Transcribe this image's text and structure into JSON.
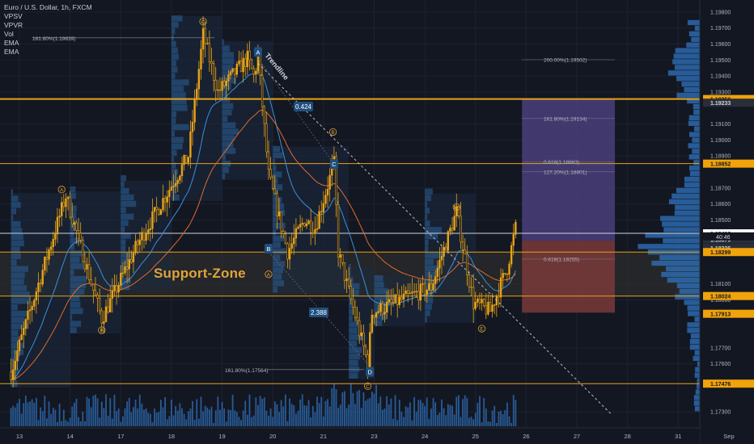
{
  "header": {
    "symbol_line": "Euro / U.S. Dollar, 1h, FXCM",
    "indicators": [
      "VPSV",
      "VPVR",
      "Vol",
      "EMA",
      "EMA"
    ]
  },
  "annotations": {
    "support_zone": "Support-Zone",
    "trendline": "Trendline",
    "ratio_top": "0.424",
    "ratio_bottom": "2.388",
    "fib_top_left": "161.80%(1.19639)",
    "fib_bottom_left": "161.80%(1.17564)",
    "target_200": "200.00%(1.19502)",
    "target_161": "161.80%(1.19134)",
    "target_0618_upper": "0.618(1.18863)",
    "target_127": "127.20%(1.18801)",
    "target_0618_lower": "0.618(1.18255)",
    "time_left": "40:46"
  },
  "wave_labels": [
    {
      "text": "C",
      "style": "circle",
      "x": "Aug 18 15:00",
      "price": 1.1974
    },
    {
      "text": "A",
      "style": "box",
      "x": "Aug 19 17:00",
      "price": 1.1955
    },
    {
      "text": "A",
      "style": "circle",
      "x": "Aug 13 20:00",
      "price": 1.1869
    },
    {
      "text": "B",
      "style": "circle",
      "x": "Aug 14 15:00",
      "price": 1.1781
    },
    {
      "text": "B",
      "style": "box",
      "x": "Aug 19 22:00",
      "price": 1.1832
    },
    {
      "text": "A",
      "style": "circle",
      "x": "Aug 19 22:00",
      "price": 1.1816
    },
    {
      "text": "B",
      "style": "circle",
      "x": "Aug 21 09:00",
      "price": 1.1905
    },
    {
      "text": "C",
      "style": "box",
      "x": "Aug 21 10:00",
      "price": 1.1885
    },
    {
      "text": "D",
      "style": "circle",
      "x": "Aug 24 15:00",
      "price": 1.1858
    },
    {
      "text": "D",
      "style": "box",
      "x": "Aug 22 20:00",
      "price": 1.1755
    },
    {
      "text": "C",
      "style": "circle",
      "x": "Aug 22 18:00",
      "price": 1.1746
    },
    {
      "text": "E",
      "style": "circle",
      "x": "Aug 25 03:00",
      "price": 1.1782
    }
  ],
  "price_axis": {
    "ticks": [
      "1.19800",
      "1.19700",
      "1.19600",
      "1.19500",
      "1.19400",
      "1.19300",
      "1.19100",
      "1.19000",
      "1.18900",
      "1.18700",
      "1.18600",
      "1.18500",
      "1.18100",
      "1.18000",
      "1.17700",
      "1.17600",
      "1.17300"
    ],
    "highlights": [
      {
        "text": "1.19256",
        "bg": "#f0a30a",
        "fg": "#131722"
      },
      {
        "text": "1.19233",
        "bg": "#2a2e39",
        "fg": "#d1d4dc"
      },
      {
        "text": "1.18852",
        "bg": "#f0a30a",
        "fg": "#131722"
      },
      {
        "text": "1.18416",
        "bg": "#ffffff",
        "fg": "#131722"
      },
      {
        "text": "1.18379",
        "bg": "#2a2e39",
        "fg": "#d1d4dc"
      },
      {
        "text": "1.18326",
        "bg": "#2a2e39",
        "fg": "#d1d4dc"
      },
      {
        "text": "1.18299",
        "bg": "#f0a30a",
        "fg": "#131722"
      },
      {
        "text": "1.18024",
        "bg": "#f0a30a",
        "fg": "#131722"
      },
      {
        "text": "1.17913",
        "bg": "#f0a30a",
        "fg": "#131722"
      },
      {
        "text": "1.17476",
        "bg": "#f0a30a",
        "fg": "#131722"
      }
    ]
  },
  "time_axis": {
    "labels": [
      "13",
      "14",
      "17",
      "18",
      "19",
      "20",
      "21",
      "23",
      "24",
      "25",
      "26",
      "27",
      "28",
      "31",
      "Sep"
    ]
  },
  "colors": {
    "background": "#131722",
    "candle": "#e8a317",
    "ema_fast": "#3d8fd8",
    "ema_slow": "#e06a2c",
    "horizontal_levels": "#e8a317",
    "volume": "#2e6db4",
    "target_box_upper": "#4a3f7a",
    "target_box_lower": "#7a3a3a",
    "support_zone_fill": "#3a3a34"
  },
  "chart_data": {
    "type": "candlestick",
    "symbol": "EURUSD",
    "interval": "1h",
    "ylim": [
      1.1725,
      1.1985
    ],
    "xlim": [
      "Aug 12 20:00",
      "Sep 1 20:00"
    ],
    "time_anchors": [
      {
        "label": "Aug 13 00:00",
        "t": 4
      },
      {
        "label": "Aug 14 00:00",
        "t": 28
      },
      {
        "label": "Aug 17 00:00",
        "t": 52
      },
      {
        "label": "Aug 18 00:00",
        "t": 76
      },
      {
        "label": "Aug 19 00:00",
        "t": 100
      },
      {
        "label": "Aug 20 00:00",
        "t": 124
      },
      {
        "label": "Aug 21 00:00",
        "t": 148
      },
      {
        "label": "Aug 23 00:00",
        "t": 172
      },
      {
        "label": "Aug 24 00:00",
        "t": 196
      },
      {
        "label": "Aug 25 00:00",
        "t": 220
      },
      {
        "label": "Aug 26 00:00",
        "t": 244
      },
      {
        "label": "Aug 27 00:00",
        "t": 268
      },
      {
        "label": "Aug 28 00:00",
        "t": 292
      },
      {
        "label": "Aug 31 00:00",
        "t": 316
      },
      {
        "label": "Sep 1 00:00",
        "t": 340
      }
    ],
    "swing_points": [
      {
        "time": "Aug 12 20:00",
        "price": 1.1755
      },
      {
        "time": "Aug 13 22:00",
        "price": 1.1865
      },
      {
        "time": "Aug 14 15:00",
        "price": 1.1788
      },
      {
        "time": "Aug 17 08:00",
        "price": 1.1835
      },
      {
        "time": "Aug 18 08:00",
        "price": 1.189
      },
      {
        "time": "Aug 18 15:00",
        "price": 1.1966
      },
      {
        "time": "Aug 18 22:00",
        "price": 1.193
      },
      {
        "time": "Aug 19 12:00",
        "price": 1.1951
      },
      {
        "time": "Aug 19 15:00",
        "price": 1.194
      },
      {
        "time": "Aug 19 17:00",
        "price": 1.1951
      },
      {
        "time": "Aug 19 22:00",
        "price": 1.1878
      },
      {
        "time": "Aug 20 07:00",
        "price": 1.183
      },
      {
        "time": "Aug 20 15:00",
        "price": 1.185
      },
      {
        "time": "Aug 20 20:00",
        "price": 1.1845
      },
      {
        "time": "Aug 21 10:00",
        "price": 1.1885
      },
      {
        "time": "Aug 21 14:00",
        "price": 1.183
      },
      {
        "time": "Aug 22 18:00",
        "price": 1.176
      },
      {
        "time": "Aug 22 22:00",
        "price": 1.1792
      },
      {
        "time": "Aug 24 03:00",
        "price": 1.1808
      },
      {
        "time": "Aug 24 15:00",
        "price": 1.1855
      },
      {
        "time": "Aug 24 23:00",
        "price": 1.1798
      },
      {
        "time": "Aug 25 07:00",
        "price": 1.1793
      },
      {
        "time": "Aug 25 15:00",
        "price": 1.182
      },
      {
        "time": "Aug 25 19:00",
        "price": 1.1845
      }
    ],
    "levels": [
      {
        "price": 1.19256,
        "color": "#e8a317",
        "width": 2
      },
      {
        "price": 1.18852,
        "color": "#e8a317",
        "width": 1
      },
      {
        "price": 1.18416,
        "color": "#d1d4dc",
        "width": 1
      },
      {
        "price": 1.18299,
        "color": "#e8a317",
        "width": 1
      },
      {
        "price": 1.18024,
        "color": "#e8a317",
        "width": 1
      },
      {
        "price": 1.17476,
        "color": "#e8a317",
        "width": 1
      }
    ],
    "support_zone": [
      1.18024,
      1.18299
    ],
    "trendline": [
      {
        "time": "Aug 19 17:00",
        "price": 1.1948
      },
      {
        "time": "Aug 28 08:00",
        "price": 1.1728
      }
    ],
    "measure_lines": [
      {
        "from": {
          "time": "Aug 19 17:00",
          "price": 1.1951
        },
        "to": {
          "time": "Aug 21 10:00",
          "price": 1.1885
        }
      },
      {
        "from": {
          "time": "Aug 19 22:00",
          "price": 1.183
        },
        "to": {
          "time": "Aug 22 18:00",
          "price": 1.176
        }
      }
    ],
    "target_boxes": [
      {
        "t_start": "Aug 25 22:00",
        "t_end": "Aug 27 18:00",
        "top": 1.19256,
        "bottom": 1.1837,
        "color": "#4a3f7a"
      },
      {
        "t_start": "Aug 25 22:00",
        "t_end": "Aug 27 18:00",
        "top": 1.1837,
        "bottom": 1.1792,
        "color": "#7a3a3a"
      }
    ],
    "fib_levels": [
      {
        "price": 1.19502,
        "label": "200.00%(1.19502)"
      },
      {
        "price": 1.19134,
        "label": "161.80%(1.19134)"
      },
      {
        "price": 1.18863,
        "label": "0.618(1.18863)"
      },
      {
        "price": 1.18801,
        "label": "127.20%(1.18801)"
      },
      {
        "price": 1.18255,
        "label": "0.618(1.18255)"
      }
    ]
  }
}
